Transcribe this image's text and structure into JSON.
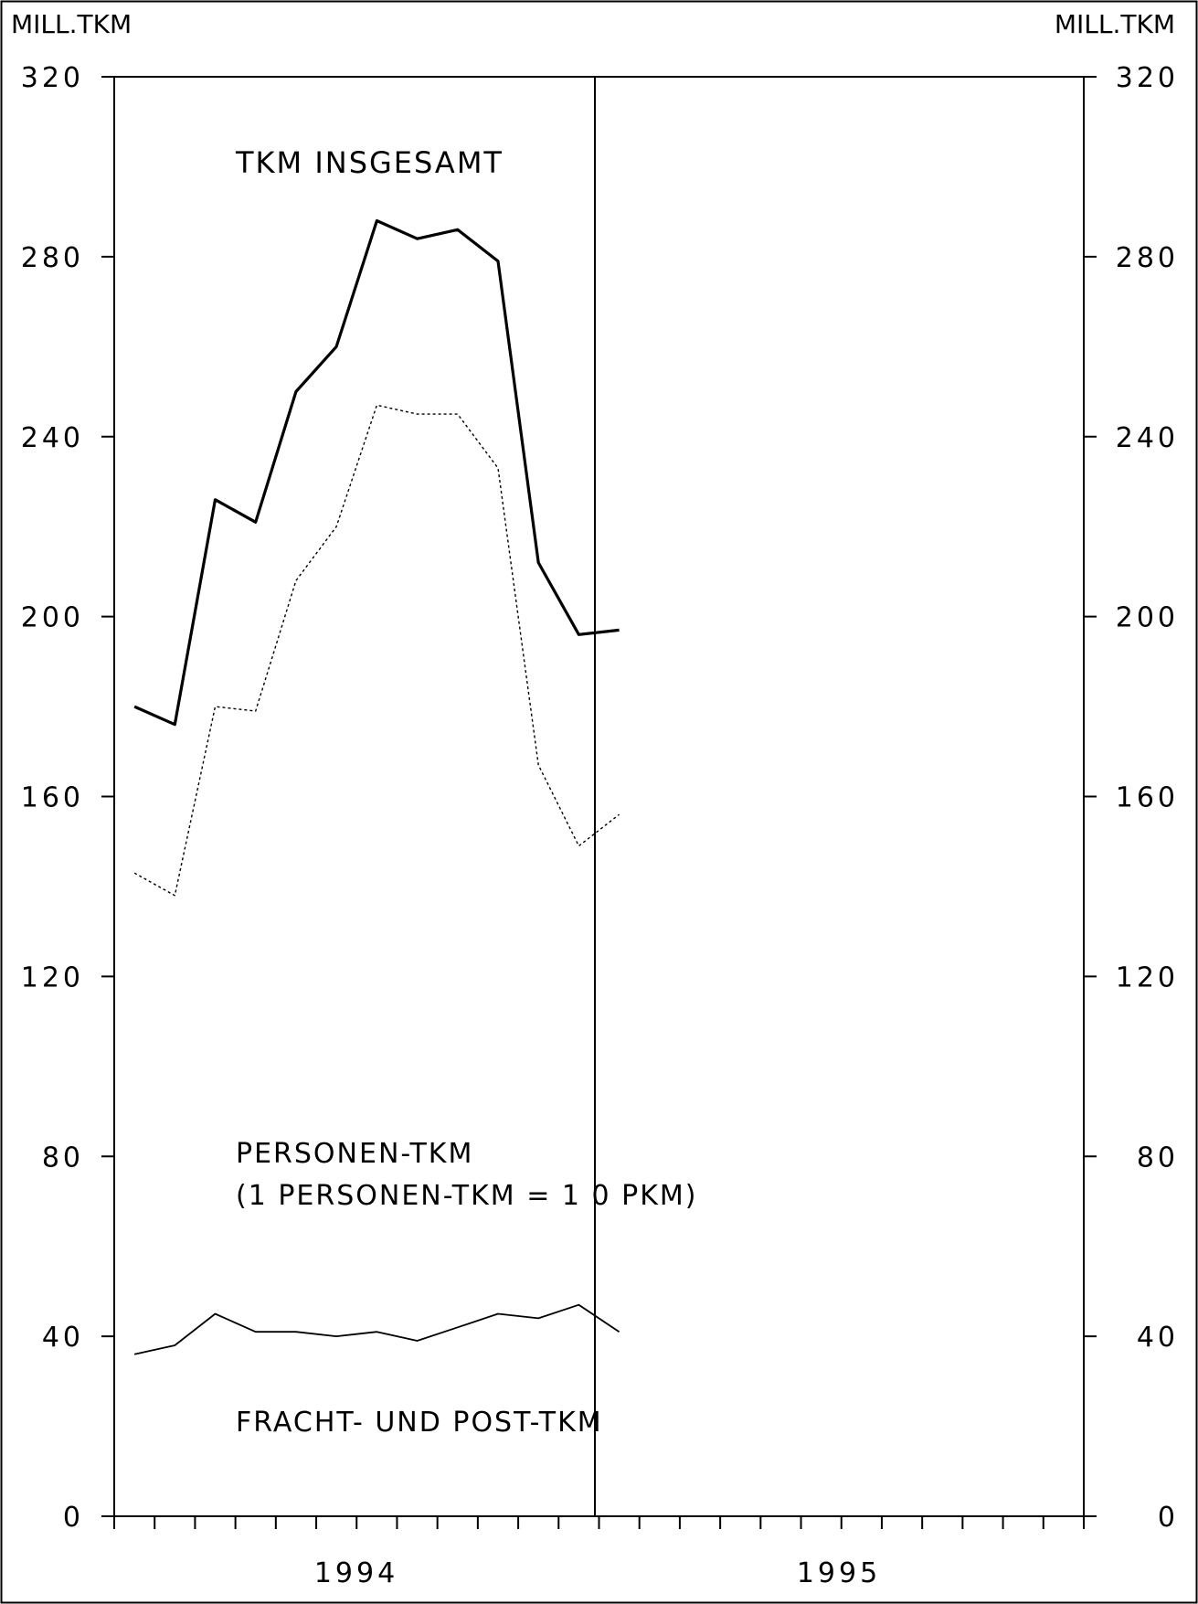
{
  "chart_data": {
    "type": "line",
    "y_unit_left": "MILL.TKM",
    "y_unit_right": "MILL.TKM",
    "ylim": [
      0,
      320
    ],
    "yticks": [
      0,
      40,
      80,
      120,
      160,
      200,
      240,
      280,
      320
    ],
    "x_year_labels": [
      "1994",
      "1995"
    ],
    "x": [
      1,
      2,
      3,
      4,
      5,
      6,
      7,
      8,
      9,
      10,
      11,
      12,
      13
    ],
    "grid": false,
    "series": [
      {
        "name": "TKM INSGESAMT",
        "style": "bold",
        "values": [
          180,
          176,
          226,
          221,
          250,
          260,
          288,
          284,
          286,
          279,
          212,
          196,
          197
        ]
      },
      {
        "name": "PERSONEN-TKM",
        "style": "dotted",
        "values": [
          143,
          138,
          180,
          179,
          208,
          220,
          247,
          245,
          245,
          233,
          167,
          149,
          156
        ]
      },
      {
        "name": "FRACHT- UND POST-TKM",
        "style": "thin",
        "values": [
          36,
          38,
          45,
          41,
          41,
          40,
          41,
          39,
          42,
          45,
          44,
          47,
          41
        ]
      }
    ],
    "annotations": {
      "total": "TKM INSGESAMT",
      "passenger_line1": "PERSONEN-TKM",
      "passenger_line2": "(1 PERSONEN-TKM = 1 0 PKM)",
      "freight": "FRACHT- UND POST-TKM"
    }
  }
}
